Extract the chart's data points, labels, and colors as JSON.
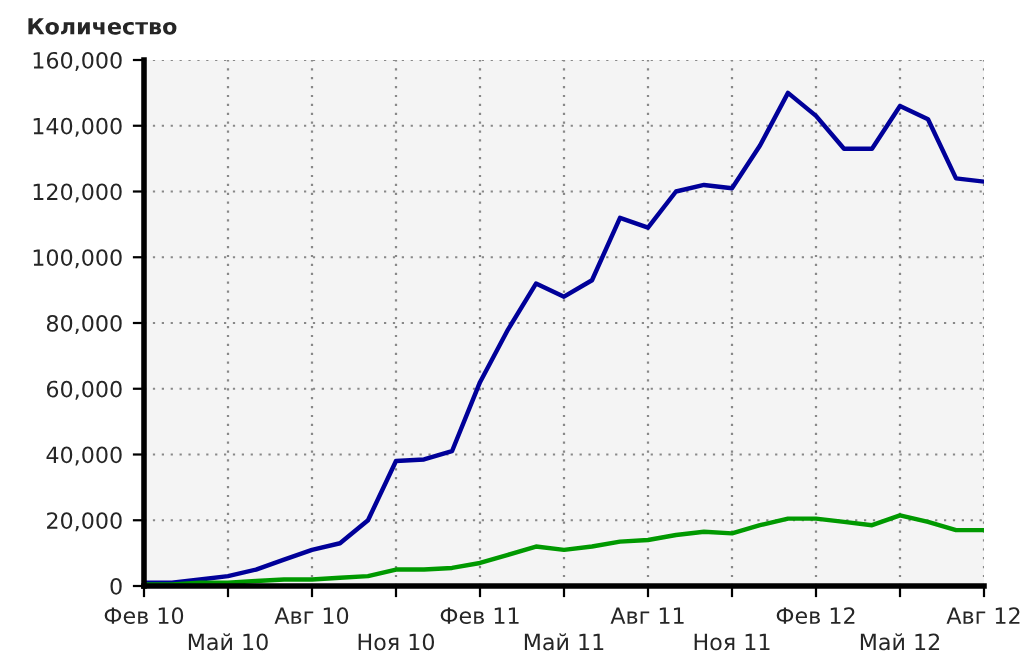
{
  "chart_data": {
    "type": "line",
    "ylabel": "Количество",
    "categories": [
      "Фев 10",
      null,
      null,
      "Май 10",
      null,
      null,
      "Авг 10",
      null,
      null,
      "Ноя 10",
      null,
      null,
      "Фев 11",
      null,
      null,
      "Май 11",
      null,
      null,
      "Авг 11",
      null,
      null,
      "Ноя 11",
      null,
      null,
      "Фев 12",
      null,
      null,
      "Май 12",
      null,
      null,
      "Авг 12"
    ],
    "series": [
      {
        "color": "#000099",
        "values": [
          1000,
          1000,
          2000,
          3000,
          5000,
          8000,
          11000,
          13000,
          20000,
          38000,
          38500,
          41000,
          62000,
          78000,
          92000,
          88000,
          93000,
          112000,
          109000,
          120000,
          122000,
          121000,
          134000,
          150000,
          143000,
          133000,
          133000,
          146000,
          142000,
          124000,
          123000
        ]
      },
      {
        "color": "#009900",
        "values": [
          500,
          500,
          1000,
          1000,
          1500,
          2000,
          2000,
          2500,
          3000,
          5000,
          5000,
          5500,
          7000,
          9500,
          12000,
          11000,
          12000,
          13500,
          14000,
          15500,
          16500,
          16000,
          18500,
          20500,
          20500,
          19500,
          18500,
          21500,
          19500,
          17000,
          17000
        ]
      }
    ],
    "ylim": [
      0,
      160000
    ],
    "yticks": [
      0,
      {
        "value": 20000,
        "label": "20,000"
      },
      {
        "value": 40000,
        "label": "40,000"
      },
      {
        "value": 60000,
        "label": "60,000"
      },
      {
        "value": 80000,
        "label": "80,000"
      },
      {
        "value": 100000,
        "label": "100,000"
      },
      {
        "value": 120000,
        "label": "120,000"
      },
      {
        "value": 140000,
        "label": "140,000"
      },
      {
        "value": 160000,
        "label": "160,000"
      }
    ],
    "grid": true,
    "legend": false,
    "marker": "none",
    "line_style": "solid"
  }
}
